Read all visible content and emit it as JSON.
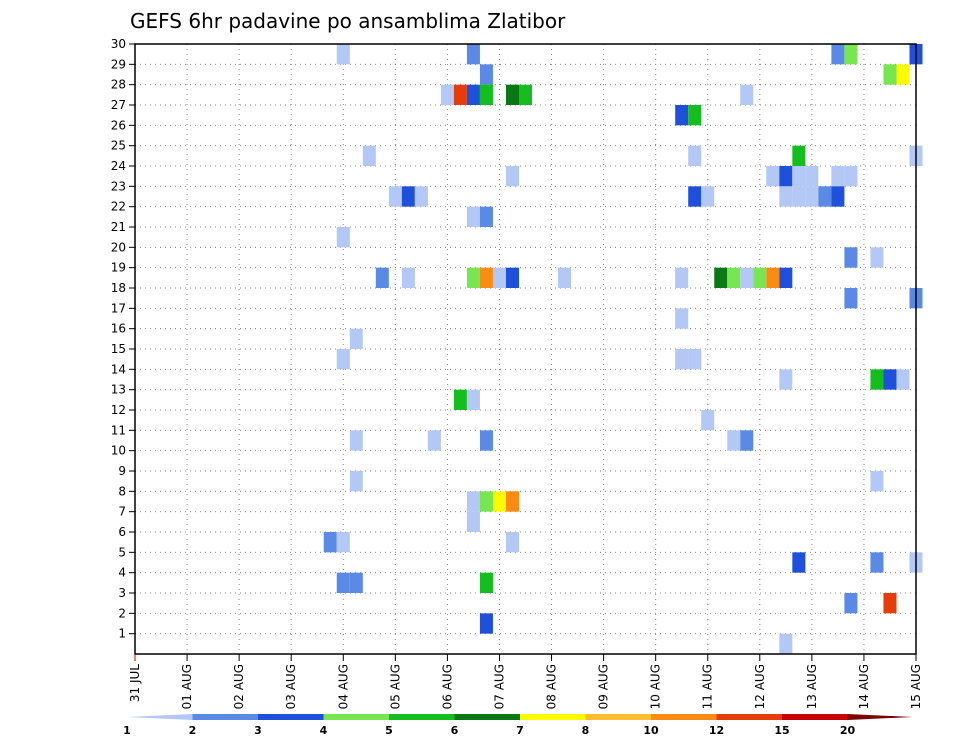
{
  "chart_data": {
    "type": "heatmap",
    "title": "GEFS 6hr padavine po ansamblima Zlatibor",
    "xlabel": "",
    "ylabel": "",
    "x_start_day": 0,
    "x_end_day": 15,
    "steps_per_day": 4,
    "x_tick_labels": [
      "31 JUL",
      "01 AUG",
      "02 AUG",
      "03 AUG",
      "04 AUG",
      "05 AUG",
      "06 AUG",
      "07 AUG",
      "08 AUG",
      "09 AUG",
      "10 AUG",
      "11 AUG",
      "12 AUG",
      "13 AUG",
      "14 AUG",
      "15 AUG"
    ],
    "y_tick_labels": [
      "1",
      "2",
      "3",
      "4",
      "5",
      "6",
      "7",
      "8",
      "9",
      "10",
      "11",
      "12",
      "13",
      "14",
      "15",
      "16",
      "17",
      "18",
      "19",
      "20",
      "21",
      "22",
      "23",
      "24",
      "25",
      "26",
      "27",
      "28",
      "29",
      "30"
    ],
    "ylim": [
      0,
      30
    ],
    "grid": true,
    "legend": {
      "position": "bottom",
      "labels": [
        "1",
        "2",
        "3",
        "4",
        "5",
        "6",
        "7",
        "8",
        "10",
        "12",
        "15",
        "20"
      ],
      "colors": [
        "#b4c8f5",
        "#5a8ae6",
        "#1e50dc",
        "#78e650",
        "#14be1e",
        "#0a7814",
        "#fafa00",
        "#ffbe32",
        "#fa8c14",
        "#e63c0a",
        "#c80000",
        "#7d0000"
      ]
    },
    "cells": [
      {
        "m": 30,
        "x": 4.0,
        "c": 1
      },
      {
        "m": 30,
        "x": 6.5,
        "c": 2
      },
      {
        "m": 30,
        "x": 13.5,
        "c": 2
      },
      {
        "m": 30,
        "x": 13.75,
        "c": 4
      },
      {
        "m": 30,
        "x": 15.0,
        "c": 3
      },
      {
        "m": 29,
        "x": 6.75,
        "c": 2
      },
      {
        "m": 29,
        "x": 14.5,
        "c": 4
      },
      {
        "m": 29,
        "x": 14.75,
        "c": 7
      },
      {
        "m": 28,
        "x": 6.0,
        "c": 1
      },
      {
        "m": 28,
        "x": 6.25,
        "c": 10
      },
      {
        "m": 28,
        "x": 6.5,
        "c": 3
      },
      {
        "m": 28,
        "x": 6.75,
        "c": 5
      },
      {
        "m": 28,
        "x": 7.25,
        "c": 6
      },
      {
        "m": 28,
        "x": 7.5,
        "c": 5
      },
      {
        "m": 28,
        "x": 11.75,
        "c": 1
      },
      {
        "m": 27,
        "x": 10.5,
        "c": 3
      },
      {
        "m": 27,
        "x": 10.75,
        "c": 5
      },
      {
        "m": 25,
        "x": 4.5,
        "c": 1
      },
      {
        "m": 25,
        "x": 10.75,
        "c": 1
      },
      {
        "m": 25,
        "x": 12.75,
        "c": 5
      },
      {
        "m": 25,
        "x": 15.0,
        "c": 1
      },
      {
        "m": 24,
        "x": 7.25,
        "c": 1
      },
      {
        "m": 24,
        "x": 12.25,
        "c": 1
      },
      {
        "m": 24,
        "x": 12.5,
        "c": 3
      },
      {
        "m": 24,
        "x": 12.75,
        "c": 1
      },
      {
        "m": 24,
        "x": 13.0,
        "c": 1
      },
      {
        "m": 24,
        "x": 13.5,
        "c": 1
      },
      {
        "m": 24,
        "x": 13.75,
        "c": 1
      },
      {
        "m": 23,
        "x": 5.0,
        "c": 1
      },
      {
        "m": 23,
        "x": 5.25,
        "c": 3
      },
      {
        "m": 23,
        "x": 5.5,
        "c": 1
      },
      {
        "m": 23,
        "x": 10.75,
        "c": 3
      },
      {
        "m": 23,
        "x": 11.0,
        "c": 1
      },
      {
        "m": 23,
        "x": 12.5,
        "c": 1
      },
      {
        "m": 23,
        "x": 12.75,
        "c": 1
      },
      {
        "m": 23,
        "x": 13.0,
        "c": 1
      },
      {
        "m": 23,
        "x": 13.25,
        "c": 2
      },
      {
        "m": 23,
        "x": 13.5,
        "c": 3
      },
      {
        "m": 22,
        "x": 6.5,
        "c": 1
      },
      {
        "m": 22,
        "x": 6.75,
        "c": 2
      },
      {
        "m": 21,
        "x": 4.0,
        "c": 1
      },
      {
        "m": 20,
        "x": 13.75,
        "c": 2
      },
      {
        "m": 20,
        "x": 14.25,
        "c": 1
      },
      {
        "m": 19,
        "x": 4.75,
        "c": 2
      },
      {
        "m": 19,
        "x": 5.25,
        "c": 1
      },
      {
        "m": 19,
        "x": 6.5,
        "c": 4
      },
      {
        "m": 19,
        "x": 6.75,
        "c": 9
      },
      {
        "m": 19,
        "x": 7.0,
        "c": 1
      },
      {
        "m": 19,
        "x": 7.25,
        "c": 3
      },
      {
        "m": 19,
        "x": 8.25,
        "c": 1
      },
      {
        "m": 19,
        "x": 10.5,
        "c": 1
      },
      {
        "m": 19,
        "x": 11.25,
        "c": 6
      },
      {
        "m": 19,
        "x": 11.5,
        "c": 4
      },
      {
        "m": 19,
        "x": 11.75,
        "c": 1
      },
      {
        "m": 19,
        "x": 12.0,
        "c": 4
      },
      {
        "m": 19,
        "x": 12.25,
        "c": 9
      },
      {
        "m": 19,
        "x": 12.5,
        "c": 3
      },
      {
        "m": 18,
        "x": 13.75,
        "c": 2
      },
      {
        "m": 18,
        "x": 15.0,
        "c": 2
      },
      {
        "m": 17,
        "x": 10.5,
        "c": 1
      },
      {
        "m": 16,
        "x": 4.25,
        "c": 1
      },
      {
        "m": 15,
        "x": 4.0,
        "c": 1
      },
      {
        "m": 15,
        "x": 10.5,
        "c": 1
      },
      {
        "m": 15,
        "x": 10.75,
        "c": 1
      },
      {
        "m": 14,
        "x": 12.5,
        "c": 1
      },
      {
        "m": 14,
        "x": 14.25,
        "c": 5
      },
      {
        "m": 14,
        "x": 14.5,
        "c": 3
      },
      {
        "m": 14,
        "x": 14.75,
        "c": 1
      },
      {
        "m": 13,
        "x": 6.25,
        "c": 5
      },
      {
        "m": 13,
        "x": 6.5,
        "c": 1
      },
      {
        "m": 12,
        "x": 11.0,
        "c": 1
      },
      {
        "m": 11,
        "x": 4.25,
        "c": 1
      },
      {
        "m": 11,
        "x": 5.75,
        "c": 1
      },
      {
        "m": 11,
        "x": 6.75,
        "c": 2
      },
      {
        "m": 11,
        "x": 11.5,
        "c": 1
      },
      {
        "m": 11,
        "x": 11.75,
        "c": 2
      },
      {
        "m": 9,
        "x": 4.25,
        "c": 1
      },
      {
        "m": 9,
        "x": 14.25,
        "c": 1
      },
      {
        "m": 8,
        "x": 6.5,
        "c": 1
      },
      {
        "m": 8,
        "x": 6.75,
        "c": 4
      },
      {
        "m": 8,
        "x": 7.0,
        "c": 7
      },
      {
        "m": 8,
        "x": 7.25,
        "c": 9
      },
      {
        "m": 7,
        "x": 6.5,
        "c": 1
      },
      {
        "m": 6,
        "x": 3.75,
        "c": 2
      },
      {
        "m": 6,
        "x": 4.0,
        "c": 1
      },
      {
        "m": 6,
        "x": 7.25,
        "c": 1
      },
      {
        "m": 5,
        "x": 12.75,
        "c": 3
      },
      {
        "m": 5,
        "x": 14.25,
        "c": 2
      },
      {
        "m": 5,
        "x": 15.0,
        "c": 1
      },
      {
        "m": 4,
        "x": 4.0,
        "c": 2
      },
      {
        "m": 4,
        "x": 4.25,
        "c": 2
      },
      {
        "m": 4,
        "x": 6.75,
        "c": 5
      },
      {
        "m": 3,
        "x": 13.75,
        "c": 2
      },
      {
        "m": 3,
        "x": 14.5,
        "c": 10
      },
      {
        "m": 2,
        "x": 6.75,
        "c": 3
      },
      {
        "m": 1,
        "x": 12.5,
        "c": 1
      }
    ]
  }
}
